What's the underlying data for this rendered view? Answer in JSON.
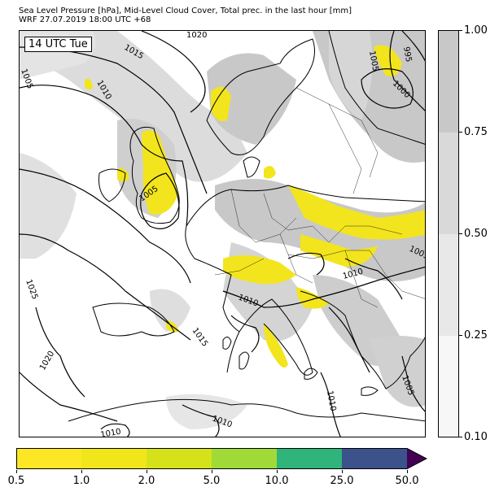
{
  "header": {
    "title_line1": "Sea Level Pressure [hPa], Mid-Level Cloud Cover, Total prec. in the last hour [mm]",
    "title_line2": "WRF 27.07.2019 18:00 UTC +68"
  },
  "map": {
    "time_label": "14 UTC Tue",
    "isobar_labels": [
      "1020",
      "1015",
      "1005",
      "1010",
      "1005",
      "1025",
      "1020",
      "1015",
      "1010",
      "1010",
      "1010",
      "1010",
      "1005",
      "1010",
      "1005",
      "995",
      "1000",
      "1005"
    ],
    "land_color": "#ffffff",
    "coast_color": "#000000"
  },
  "cloud_colorbar": {
    "ticks": [
      "0.10",
      "0.25",
      "0.50",
      "0.75",
      "1.00"
    ],
    "colors": [
      "#f7f7f7",
      "#e8e8e8",
      "#d9d9d9",
      "#c8c8c8"
    ]
  },
  "precip_colorbar": {
    "ticks": [
      "0.5",
      "1.0",
      "2.0",
      "5.0",
      "10.0",
      "25.0",
      "50.0"
    ],
    "colors": [
      "#fde725",
      "#f0e619",
      "#d5e21a",
      "#a0da39",
      "#2fb47c",
      "#3b528b",
      "#440154"
    ]
  }
}
